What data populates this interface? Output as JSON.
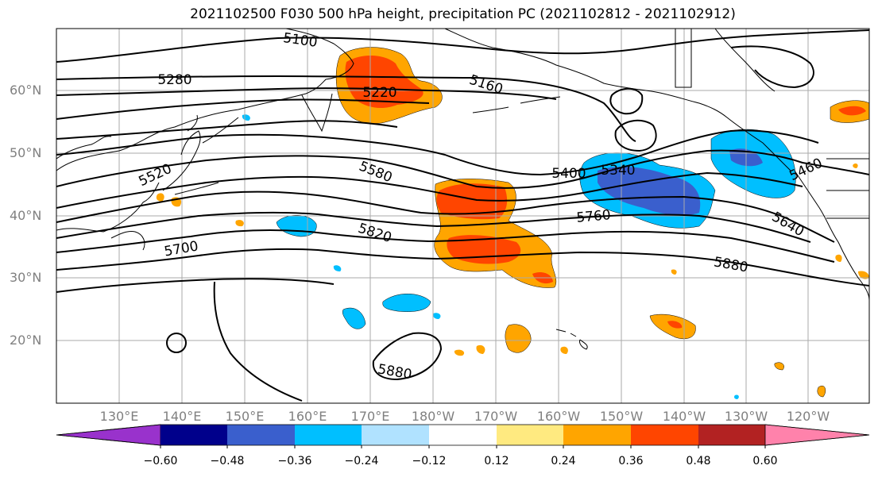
{
  "title": "2021102500 F030 500 hPa height, precipitation PC (2021102812 - 2021102912)",
  "map": {
    "lat_labels": [
      "60°N",
      "50°N",
      "40°N",
      "30°N",
      "20°N"
    ],
    "lon_labels": [
      "130°E",
      "140°E",
      "150°E",
      "160°E",
      "170°E",
      "180°W",
      "170°W",
      "160°W",
      "150°W",
      "140°W",
      "130°W",
      "120°W"
    ],
    "contour_labels": [
      "5100",
      "5280",
      "5220",
      "5160",
      "5520",
      "5580",
      "5400",
      "5340",
      "5460",
      "5760",
      "5640",
      "5820",
      "5700",
      "5880",
      "5880"
    ],
    "grid": true
  },
  "colorbar": {
    "tick_labels": [
      "−0.60",
      "−0.48",
      "−0.36",
      "−0.24",
      "−0.12",
      "0.12",
      "0.24",
      "0.36",
      "0.48",
      "0.60"
    ],
    "colors": [
      "#9932cc",
      "#00008b",
      "#3a5fcd",
      "#00bfff",
      "#b0e2ff",
      "#ffffff",
      "#ffea80",
      "#ffa500",
      "#ff4500",
      "#b22222",
      "#ff82ab"
    ],
    "extend": "both"
  },
  "chart_data": {
    "type": "heatmap",
    "title": "2021102500 F030 500 hPa height, precipitation PC (2021102812 - 2021102912)",
    "xlabel": "",
    "ylabel": "",
    "x_ticks": [
      "130°E",
      "140°E",
      "150°E",
      "160°E",
      "170°E",
      "180°W",
      "170°W",
      "160°W",
      "150°W",
      "140°W",
      "130°W",
      "120°W"
    ],
    "y_ticks": [
      "60°N",
      "50°N",
      "40°N",
      "30°N",
      "20°N"
    ],
    "contour_levels_labeled": [
      5100,
      5160,
      5220,
      5280,
      5340,
      5400,
      5460,
      5520,
      5580,
      5640,
      5700,
      5760,
      5820,
      5880
    ],
    "color_levels": [
      -0.6,
      -0.48,
      -0.36,
      -0.24,
      -0.12,
      0.12,
      0.24,
      0.36,
      0.48,
      0.6
    ]
  }
}
